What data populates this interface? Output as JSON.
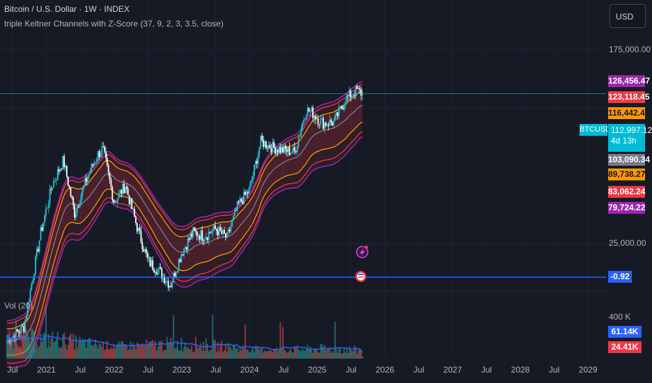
{
  "header": {
    "symbol_line": "Bitcoin / U.S. Dollar · 1W · INDEX",
    "indicator_line": "triple Keltner Channels with  Z-Score (37, 9, 2, 3, 3.5, close)"
  },
  "currency_button": "USD",
  "price_scale": {
    "tick_175k": "175,000.00",
    "tick_25k": "25,000.00"
  },
  "price_tags": {
    "kc_upper_outer": "126,456.47",
    "kc_upper_mid": "123,118.45",
    "kc_upper_inner": "116,442.41",
    "symbol_name": "BTCUSD",
    "last_price": "112,997.12",
    "countdown": "4d 13h",
    "basis": "103,090.34",
    "kc_lower_inner": "89,738.27",
    "kc_lower_mid": "83,062.24",
    "kc_lower_outer": "79,724.22",
    "zscore": "-0.92"
  },
  "volume": {
    "label": "Vol (20)",
    "tick_400k": "400 K",
    "ma_value": "61.14K",
    "volume_value": "24.41K"
  },
  "x_axis": {
    "labels": [
      "Jul",
      "2021",
      "Jul",
      "2022",
      "Jul",
      "2023",
      "Jul",
      "2024",
      "Jul",
      "2025",
      "Jul",
      "2026",
      "Jul",
      "2027",
      "Jul",
      "2028",
      "Jul",
      "2029"
    ]
  },
  "colors": {
    "background": "#161a25",
    "bull": "#26c6da",
    "bear": "#ffffff",
    "basis": "#9598a1",
    "inner_band": "#ff9800",
    "mid_band": "#f23645",
    "outer_band": "#9c27b0",
    "zscore_line": "#2962ff",
    "volume_ma": "#2962ff"
  },
  "chart_data": {
    "type": "line",
    "title": "Bitcoin / U.S. Dollar · 1W · INDEX",
    "xlabel": "",
    "ylabel": "",
    "x": [
      "2020-06",
      "2020-09",
      "2020-12",
      "2021-02",
      "2021-04",
      "2021-06",
      "2021-08",
      "2021-10",
      "2021-11",
      "2022-01",
      "2022-03",
      "2022-05",
      "2022-07",
      "2022-09",
      "2022-11",
      "2023-01",
      "2023-03",
      "2023-05",
      "2023-07",
      "2023-09",
      "2023-11",
      "2024-01",
      "2024-03",
      "2024-05",
      "2024-07",
      "2024-09",
      "2024-11",
      "2024-12",
      "2025-02",
      "2025-04",
      "2025-06",
      "2025-08",
      "2025-09"
    ],
    "series": [
      {
        "name": "BTCUSD",
        "values": [
          9400,
          10800,
          28000,
          45000,
          58000,
          34000,
          47000,
          61000,
          65000,
          38000,
          45000,
          30000,
          21000,
          19000,
          16500,
          23000,
          28000,
          27000,
          29000,
          26500,
          37000,
          43000,
          70000,
          66000,
          64000,
          63000,
          96000,
          94000,
          84000,
          85000,
          107000,
          117000,
          112997
        ]
      }
    ],
    "bands": {
      "basis_last": 103090.34,
      "upper": [
        116442.41,
        123118.45,
        126456.47
      ],
      "lower": [
        89738.27,
        83062.24,
        79724.22
      ]
    },
    "zscore_last": -0.92,
    "volume": {
      "ma_last": 61140,
      "last": 24410
    },
    "y_ticks": [
      25000,
      175000
    ],
    "grid": true,
    "legend": "none"
  }
}
